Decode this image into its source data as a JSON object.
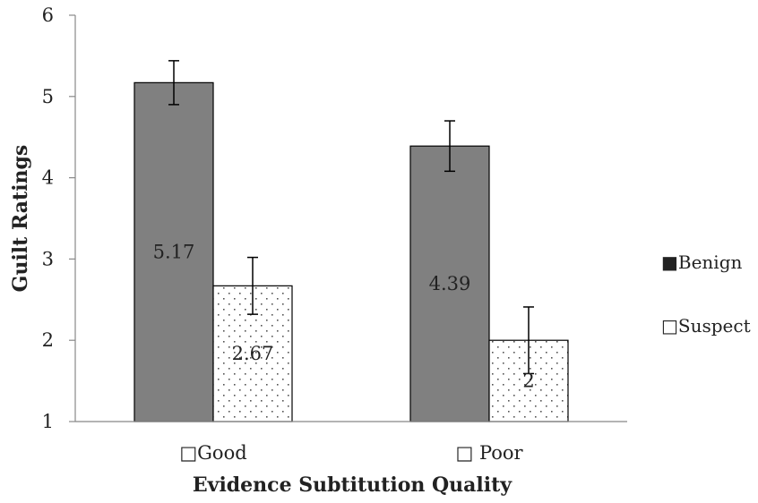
{
  "chart_data": {
    "type": "bar",
    "categories": [
      "□Good",
      "□ Poor"
    ],
    "series": [
      {
        "name": "Benign",
        "values": [
          5.17,
          4.39
        ],
        "error": [
          0.27,
          0.31
        ],
        "value_labels": [
          "5.17",
          "4.39"
        ],
        "color": "#808080"
      },
      {
        "name": "Suspect",
        "values": [
          2.67,
          2.0
        ],
        "error": [
          0.35,
          0.41
        ],
        "value_labels": [
          "2.67",
          "2"
        ],
        "color": "#ffffff",
        "pattern": "dotted"
      }
    ],
    "xlabel": "Evidence Subtitution Quality",
    "ylabel": "Guilt Ratings",
    "ylim": [
      1,
      6
    ],
    "yticks": [
      "1",
      "2",
      "3",
      "4",
      "5",
      "6"
    ],
    "legend": {
      "position": "right",
      "entries": [
        "■Benign",
        "□Suspect"
      ]
    },
    "grid": false
  }
}
